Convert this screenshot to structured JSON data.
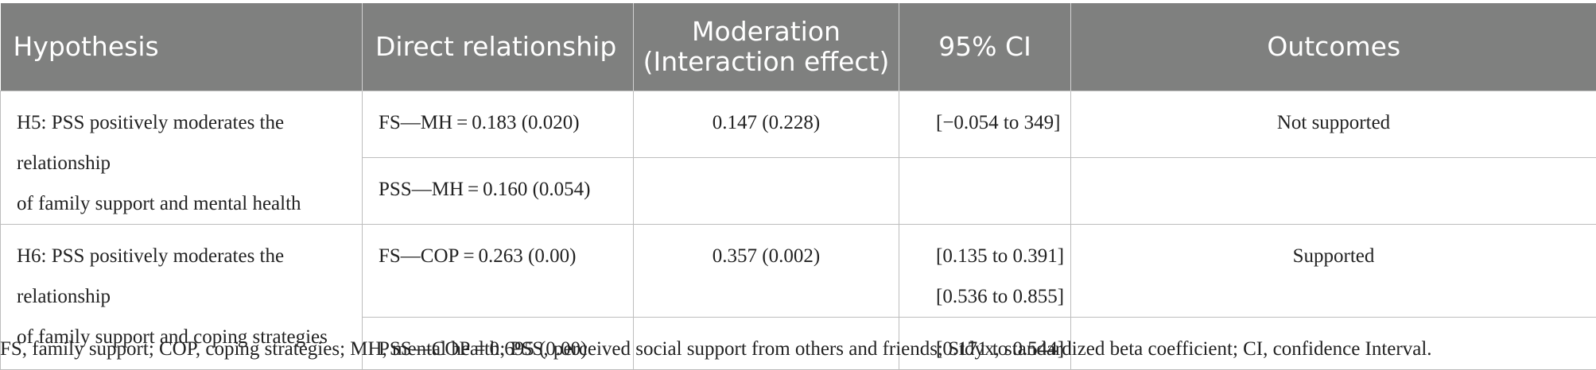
{
  "header": {
    "hypothesis": "Hypothesis",
    "direct": "Direct relationship",
    "moderation_line1": "Moderation",
    "moderation_line2": "(Interaction effect)",
    "ci": "95% CI",
    "outcomes": "Outcomes"
  },
  "groups": [
    {
      "hypothesis_line1": "H5: PSS positively moderates the relationship",
      "hypothesis_line2": "of family support and mental health",
      "rows": [
        {
          "direct": "FS—MH = 0.183 (0.020)",
          "moderation": "0.147 (0.228)",
          "ci": [
            "[−0.054 to 349]"
          ],
          "outcome": "Not supported"
        },
        {
          "direct": "PSS—MH = 0.160 (0.054)",
          "moderation": "",
          "ci": [
            ""
          ],
          "outcome": ""
        }
      ]
    },
    {
      "hypothesis_line1": "H6: PSS positively moderates the relationship",
      "hypothesis_line2": "of family support and coping strategies",
      "rows": [
        {
          "direct": "FS—COP = 0.263 (0.00)",
          "moderation": "0.357 (0.002)",
          "ci": [
            "[0.135 to 0.391]",
            "[0.536 to 0.855]"
          ],
          "outcome": "Supported"
        },
        {
          "direct": "PSS—COP = 0.695 (0.00)",
          "moderation": "",
          "ci": [
            "[0.171 to 0.544]"
          ],
          "outcome": ""
        }
      ]
    }
  ],
  "footnote": "FS, family support; COP, coping strategies; MH, mental health; PSS, perceived social support from others and friends; Stdyx, standardized beta coefficient; CI, confidence Interval."
}
